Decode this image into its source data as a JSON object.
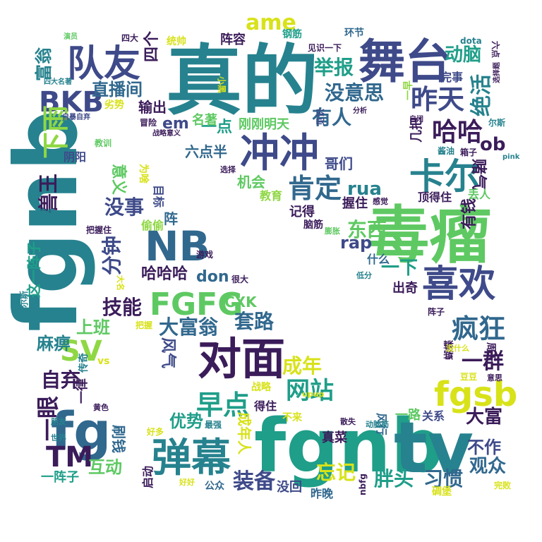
{
  "palette": {
    "dark_purple": "#3b1c5a",
    "indigo": "#3e4a89",
    "blue": "#31688e",
    "teal": "#26828e",
    "green": "#1f9e89",
    "lime": "#5ec962",
    "light_green": "#8fd744",
    "yellow": "#d8e219"
  },
  "words": [
    {
      "text": "真的",
      "color": "#26828e"
    },
    {
      "text": "fgnb",
      "color": "#26828e"
    },
    {
      "text": "fgnb",
      "color": "#1f9e89"
    },
    {
      "text": "tv",
      "color": "#26828e"
    },
    {
      "text": "毒瘤",
      "color": "#5ec962"
    },
    {
      "text": "舞台",
      "color": "#3e4a89"
    },
    {
      "text": "队友",
      "color": "#3e4a89"
    },
    {
      "text": "冲冲",
      "color": "#3e4a89"
    },
    {
      "text": "NB",
      "color": "#31688e"
    },
    {
      "text": "对面",
      "color": "#3b1c5a"
    },
    {
      "text": "fg",
      "color": "#31688e"
    },
    {
      "text": "弹幕",
      "color": "#26828e"
    },
    {
      "text": "FGFG",
      "color": "#5ec962"
    },
    {
      "text": "喜欢",
      "color": "#3e4a89"
    },
    {
      "text": "卡尔",
      "color": "#26828e"
    },
    {
      "text": "fgsb",
      "color": "#d8e219"
    },
    {
      "text": "网站",
      "color": "#1f9e89"
    },
    {
      "text": "早点",
      "color": "#1f9e89"
    },
    {
      "text": "疯狂",
      "color": "#31688e"
    },
    {
      "text": "哈哈",
      "color": "#3b1c5a"
    },
    {
      "text": "昨天",
      "color": "#3e4a89"
    },
    {
      "text": "肯定",
      "color": "#31688e"
    },
    {
      "text": "BKB",
      "color": "#3e4a89"
    },
    {
      "text": "SV",
      "color": "#8fd744"
    },
    {
      "text": "TM",
      "color": "#3b1c5a"
    },
    {
      "text": "下雨",
      "color": "#8fd744"
    },
    {
      "text": "ame",
      "color": "#d8e219"
    },
    {
      "text": "直播间",
      "color": "#31688e"
    },
    {
      "text": "举报",
      "color": "#1f9e89"
    },
    {
      "text": "没意思",
      "color": "#31688e"
    },
    {
      "text": "绝活",
      "color": "#26828e"
    },
    {
      "text": "动脑",
      "color": "#1f9e89"
    },
    {
      "text": "有人",
      "color": "#31688e"
    },
    {
      "text": "ob",
      "color": "#3b1c5a"
    },
    {
      "text": "一群",
      "color": "#3b1c5a"
    },
    {
      "text": "大富",
      "color": "#3b1c5a"
    },
    {
      "text": "观众",
      "color": "#31688e"
    },
    {
      "text": "习惯",
      "color": "#31688e"
    },
    {
      "text": "胖头",
      "color": "#1f9e89"
    },
    {
      "text": "忘记",
      "color": "#d8e219"
    },
    {
      "text": "装备",
      "color": "#3e4a89"
    },
    {
      "text": "成年",
      "color": "#d8e219"
    },
    {
      "text": "套路",
      "color": "#31688e"
    },
    {
      "text": "技能",
      "color": "#3b1c5a"
    },
    {
      "text": "大富翁",
      "color": "#31688e"
    },
    {
      "text": "优势",
      "color": "#1f9e89"
    },
    {
      "text": "互动",
      "color": "#5ec962"
    },
    {
      "text": "自弃",
      "color": "#3b1c5a"
    },
    {
      "text": "麻痹",
      "color": "#26828e"
    },
    {
      "text": "上班",
      "color": "#5ec962"
    },
    {
      "text": "没事",
      "color": "#3e4a89"
    },
    {
      "text": "分钟",
      "color": "#3e4a89"
    },
    {
      "text": "兽王",
      "color": "#3b1c5a"
    },
    {
      "text": "富翁",
      "color": "#26828e"
    },
    {
      "text": "一眼",
      "color": "#3b1c5a"
    },
    {
      "text": "哈哈哈",
      "color": "#3b1c5a"
    },
    {
      "text": "don",
      "color": "#31688e"
    },
    {
      "text": "CXK",
      "color": "#5ec962"
    },
    {
      "text": "rua",
      "color": "#26828e"
    },
    {
      "text": "rap",
      "color": "#3e4a89"
    },
    {
      "text": "东西",
      "color": "#5ec962"
    },
    {
      "text": "一下",
      "color": "#1f9e89"
    },
    {
      "text": "有钱",
      "color": "#3b1c5a"
    },
    {
      "text": "不作",
      "color": "#3e4a89"
    },
    {
      "text": "刷钱",
      "color": "#31688e"
    },
    {
      "text": "输出",
      "color": "#3b1c5a"
    },
    {
      "text": "四个",
      "color": "#3b1c5a"
    },
    {
      "text": "em",
      "color": "#3e4a89"
    },
    {
      "text": "一点",
      "color": "#1f9e89"
    },
    {
      "text": "六点半",
      "color": "#31688e"
    },
    {
      "text": "哥们",
      "color": "#3e4a89"
    },
    {
      "text": "机会",
      "color": "#5ec962"
    },
    {
      "text": "握住",
      "color": "#3b1c5a"
    },
    {
      "text": "阵容",
      "color": "#3b1c5a"
    },
    {
      "text": "刚刚明天",
      "color": "#5ec962"
    },
    {
      "text": "名著",
      "color": "#5ec962"
    },
    {
      "text": "教育",
      "color": "#8fd744"
    },
    {
      "text": "记得",
      "color": "#3b1c5a"
    },
    {
      "text": "阴阳",
      "color": "#3e4a89"
    },
    {
      "text": "意义",
      "color": "#5ec962"
    },
    {
      "text": "目标",
      "color": "#3e4a89"
    },
    {
      "text": "偷偷",
      "color": "#8fd744"
    },
    {
      "text": "风气",
      "color": "#3e4a89"
    },
    {
      "text": "这一阵子",
      "color": "#1f9e89"
    },
    {
      "text": "一阵子",
      "color": "#1f9e89"
    },
    {
      "text": "一律",
      "color": "#3b1c5a"
    },
    {
      "text": "传奇",
      "color": "#26828e"
    },
    {
      "text": "启动",
      "color": "#3b1c5a"
    },
    {
      "text": "公众",
      "color": "#31688e"
    },
    {
      "text": "没回",
      "color": "#3e4a89"
    },
    {
      "text": "昨晚",
      "color": "#31688e"
    },
    {
      "text": "真菜",
      "color": "#3b1c5a"
    },
    {
      "text": "一路",
      "color": "#5ec962"
    },
    {
      "text": "关系",
      "color": "#3e4a89"
    },
    {
      "text": "出奇",
      "color": "#3b1c5a"
    },
    {
      "text": "几把",
      "color": "#3b1c5a"
    },
    {
      "text": "赌气",
      "color": "#3b1c5a"
    },
    {
      "text": "丢人",
      "color": "#5ec962"
    },
    {
      "text": "顶得住",
      "color": "#3b1c5a"
    },
    {
      "text": "什么",
      "color": "#31688e"
    },
    {
      "text": "脑筋",
      "color": "#3b1c5a"
    },
    {
      "text": "见识一下",
      "color": "#3b1c5a"
    },
    {
      "text": "钢筋",
      "color": "#1f9e89"
    },
    {
      "text": "环节",
      "color": "#31688e"
    },
    {
      "text": "dota",
      "color": "#26828e"
    },
    {
      "text": "完事",
      "color": "#3e4a89"
    },
    {
      "text": "统帅",
      "color": "#d8e219"
    },
    {
      "text": "冒险",
      "color": "#3b1c5a"
    },
    {
      "text": "劣势",
      "color": "#d8e219"
    },
    {
      "text": "教训",
      "color": "#5ec962"
    },
    {
      "text": "战略",
      "color": "#d8e219"
    },
    {
      "text": "得住",
      "color": "#3b1c5a"
    },
    {
      "text": "成年人",
      "color": "#d8e219"
    },
    {
      "text": "不来",
      "color": "#d8e219"
    },
    {
      "text": "风行",
      "color": "#31688e"
    },
    {
      "text": "碉堡",
      "color": "#d8e219"
    },
    {
      "text": "完败",
      "color": "#d8e219"
    },
    {
      "text": "豆豆",
      "color": "#d8e219"
    },
    {
      "text": "周天",
      "color": "#3b1c5a"
    },
    {
      "text": "蝴蝶",
      "color": "#3b1c5a"
    },
    {
      "text": "阵子",
      "color": "#3b1c5a"
    },
    {
      "text": "很大",
      "color": "#3b1c5a"
    },
    {
      "text": "游戏",
      "color": "#3b1c5a"
    },
    {
      "text": "为啥",
      "color": "#d8e219"
    },
    {
      "text": "把握",
      "color": "#d8e219"
    },
    {
      "text": "把握住",
      "color": "#3b1c5a"
    },
    {
      "text": "直播",
      "color": "#26828e"
    },
    {
      "text": "选择",
      "color": "#3b1c5a"
    },
    {
      "text": "马尔斯",
      "color": "#26828e"
    },
    {
      "text": "大名",
      "color": "#d8e219"
    },
    {
      "text": "vs",
      "color": "#d8e219"
    },
    {
      "text": "好多",
      "color": "#d8e219"
    },
    {
      "text": "好好",
      "color": "#d8e219"
    },
    {
      "text": "最强",
      "color": "#26828e"
    },
    {
      "text": "世界",
      "color": "#26828e"
    },
    {
      "text": "朋友",
      "color": "#26828e"
    },
    {
      "text": "黄色",
      "color": "#3b1c5a"
    },
    {
      "text": "nbfg",
      "color": "#3b1c5a"
    },
    {
      "text": "动脑筋",
      "color": "#26828e"
    },
    {
      "text": "散失",
      "color": "#3b1c5a"
    },
    {
      "text": "upup",
      "color": "#d8e219"
    },
    {
      "text": "没什么",
      "color": "#d8e219"
    },
    {
      "text": "意思",
      "color": "#3b1c5a"
    },
    {
      "text": "低分",
      "color": "#26828e"
    },
    {
      "text": "感觉",
      "color": "#3b1c5a"
    },
    {
      "text": "膨胀",
      "color": "#5ec962"
    },
    {
      "text": "小黑",
      "color": "#d8e219"
    },
    {
      "text": "见识",
      "color": "#3e4a89"
    },
    {
      "text": "战略意义",
      "color": "#3b1c5a"
    },
    {
      "text": "分析",
      "color": "#3b1c5a"
    },
    {
      "text": "自闭",
      "color": "#3b1c5a"
    },
    {
      "text": "酱油",
      "color": "#26828e"
    },
    {
      "text": "箱子",
      "color": "#3b1c5a"
    },
    {
      "text": "pink",
      "color": "#26828e"
    },
    {
      "text": "尔斯",
      "color": "#26828e"
    },
    {
      "text": "选择题",
      "color": "#3b1c5a"
    },
    {
      "text": "六点",
      "color": "#3b1c5a"
    },
    {
      "text": "一早",
      "color": "#8fd744"
    },
    {
      "text": "四大",
      "color": "#3b1c5a"
    },
    {
      "text": "演员",
      "color": "#5ec962"
    },
    {
      "text": "四大名著",
      "color": "#26828e"
    },
    {
      "text": "自暴自弃",
      "color": "#3e4a89"
    },
    {
      "text": "阵",
      "color": "#31688e"
    }
  ]
}
